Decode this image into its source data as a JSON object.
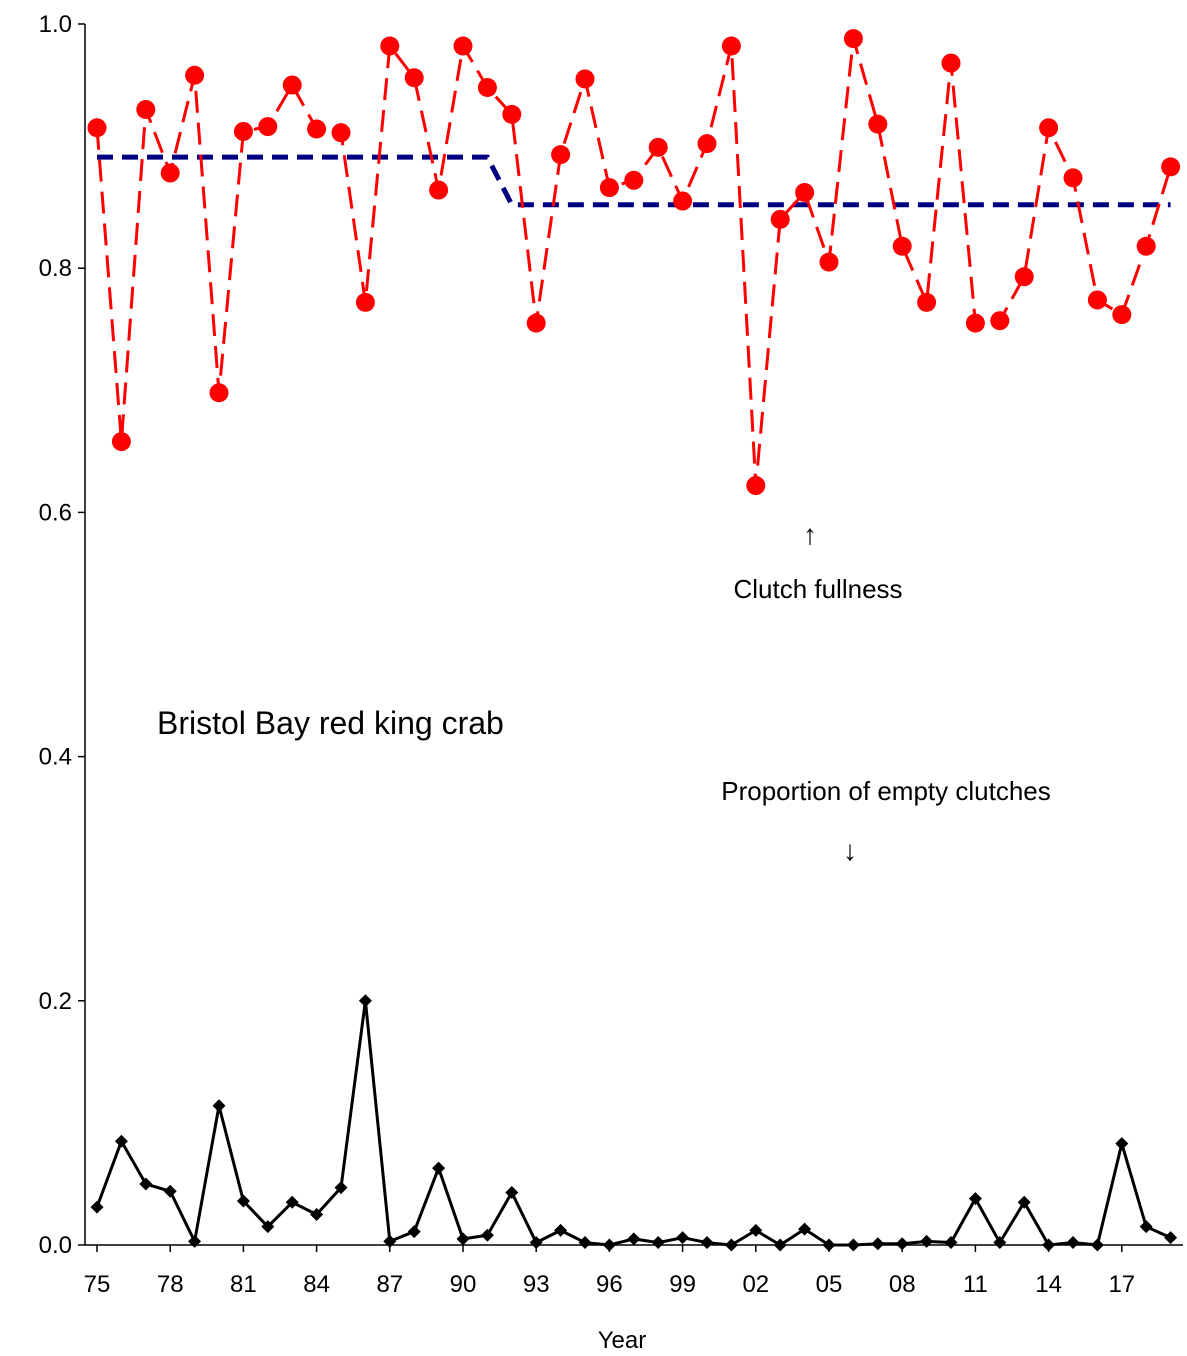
{
  "chart_data": {
    "type": "line",
    "title": "Bristol Bay red king crab",
    "xlabel": "Year",
    "ylabel": "",
    "ylim": [
      0,
      1
    ],
    "xlim": [
      1975,
      2019
    ],
    "y_ticks": [
      "0.0",
      "0.2",
      "0.4",
      "0.6",
      "0.8",
      "1.0"
    ],
    "y_tick_values": [
      0,
      0.2,
      0.4,
      0.6,
      0.8,
      1.0
    ],
    "x_ticks": [
      "75",
      "78",
      "81",
      "84",
      "87",
      "90",
      "93",
      "96",
      "99",
      "02",
      "05",
      "08",
      "11",
      "14",
      "17"
    ],
    "x_tick_values": [
      1975,
      1978,
      1981,
      1984,
      1987,
      1990,
      1993,
      1996,
      1999,
      2002,
      2005,
      2008,
      2011,
      2014,
      2017
    ],
    "grid": false,
    "legend": "none",
    "x": [
      1975,
      1976,
      1977,
      1978,
      1979,
      1980,
      1981,
      1982,
      1983,
      1984,
      1985,
      1986,
      1987,
      1988,
      1989,
      1990,
      1991,
      1992,
      1993,
      1994,
      1995,
      1996,
      1997,
      1998,
      1999,
      2000,
      2001,
      2002,
      2003,
      2004,
      2005,
      2006,
      2007,
      2008,
      2009,
      2010,
      2011,
      2012,
      2013,
      2014,
      2015,
      2016,
      2017,
      2018,
      2019
    ],
    "series": [
      {
        "color": "#ff0000",
        "line_style": "dashed",
        "marker": "circle",
        "values": [
          0.915,
          0.658,
          0.93,
          0.878,
          0.958,
          0.698,
          0.912,
          0.916,
          0.95,
          0.914,
          0.911,
          0.772,
          0.982,
          0.956,
          0.864,
          0.982,
          0.948,
          0.926,
          0.755,
          0.893,
          0.955,
          0.866,
          0.872,
          0.899,
          0.855,
          0.902,
          0.982,
          0.622,
          0.84,
          0.862,
          0.805,
          0.988,
          0.918,
          0.818,
          0.772,
          0.968,
          0.755,
          0.757,
          0.793,
          0.915,
          0.874,
          0.774,
          0.762,
          0.818,
          0.883
        ]
      },
      {
        "color": "#000080",
        "line_style": "dashed",
        "marker": "none",
        "x": [
          1975,
          1991,
          1992,
          2019
        ],
        "values": [
          0.891,
          0.891,
          0.852,
          0.852
        ]
      },
      {
        "color": "#000000",
        "line_style": "solid",
        "marker": "diamond",
        "values": [
          0.031,
          0.085,
          0.05,
          0.044,
          0.003,
          0.114,
          0.036,
          0.015,
          0.035,
          0.025,
          0.047,
          0.2,
          0.003,
          0.011,
          0.063,
          0.005,
          0.008,
          0.043,
          0.002,
          0.012,
          0.002,
          0.0,
          0.005,
          0.002,
          0.006,
          0.002,
          0.0,
          0.012,
          0.0,
          0.013,
          0.0,
          0.0,
          0.001,
          0.001,
          0.003,
          0.002,
          0.038,
          0.002,
          0.035,
          0.0,
          0.002,
          0.0,
          0.083,
          0.015,
          0.006
        ]
      }
    ],
    "annotations": {
      "clutch_fullness": "Clutch fullness",
      "empty_clutches": "Proportion of empty clutches",
      "up_arrow": "↑",
      "down_arrow": "↓"
    },
    "colors": {
      "fullness": "#ff0000",
      "trend": "#000080",
      "empty": "#000000"
    }
  }
}
